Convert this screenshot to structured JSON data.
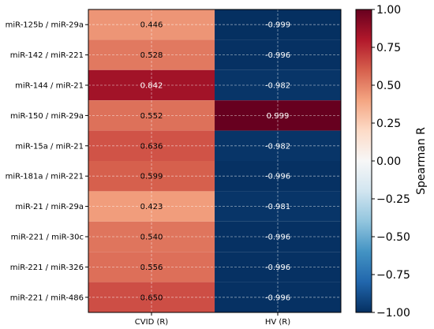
{
  "chart_data": {
    "type": "heatmap",
    "rows": [
      "miR-125b / miR-29a",
      "miR-142 / miR-221",
      "miR-144 / miR-21",
      "miR-150 / miR-29a",
      "miR-15a / miR-21",
      "miR-181a / miR-221",
      "miR-21 / miR-29a",
      "miR-221 / miR-30c",
      "miR-221 / miR-326",
      "miR-221 / miR-486"
    ],
    "columns": [
      "CVID (R)",
      "HV (R)"
    ],
    "values": [
      [
        0.446,
        -0.999
      ],
      [
        0.528,
        -0.996
      ],
      [
        0.842,
        -0.982
      ],
      [
        0.552,
        0.999
      ],
      [
        0.636,
        -0.982
      ],
      [
        0.599,
        -0.996
      ],
      [
        0.423,
        -0.981
      ],
      [
        0.54,
        -0.996
      ],
      [
        0.556,
        -0.996
      ],
      [
        0.65,
        -0.996
      ]
    ],
    "cell_labels": [
      [
        "0.446",
        "-0.999"
      ],
      [
        "0.528",
        "-0.996"
      ],
      [
        "0.842",
        "-0.982"
      ],
      [
        "0.552",
        "0.999"
      ],
      [
        "0.636",
        "-0.982"
      ],
      [
        "0.599",
        "-0.996"
      ],
      [
        "0.423",
        "-0.981"
      ],
      [
        "0.540",
        "-0.996"
      ],
      [
        "0.556",
        "-0.996"
      ],
      [
        "0.650",
        "-0.996"
      ]
    ],
    "colormap": "RdBu_r",
    "vmin": -1.0,
    "vmax": 1.0,
    "colorbar": {
      "label": "Spearman R",
      "ticks": [
        1.0,
        0.75,
        0.5,
        0.25,
        0.0,
        -0.25,
        -0.5,
        -0.75,
        -1.0
      ],
      "tick_labels": [
        "1.00",
        "0.75",
        "0.50",
        "0.25",
        "0.00",
        "−0.25",
        "−0.50",
        "−0.75",
        "−1.00"
      ]
    },
    "grid": true
  }
}
